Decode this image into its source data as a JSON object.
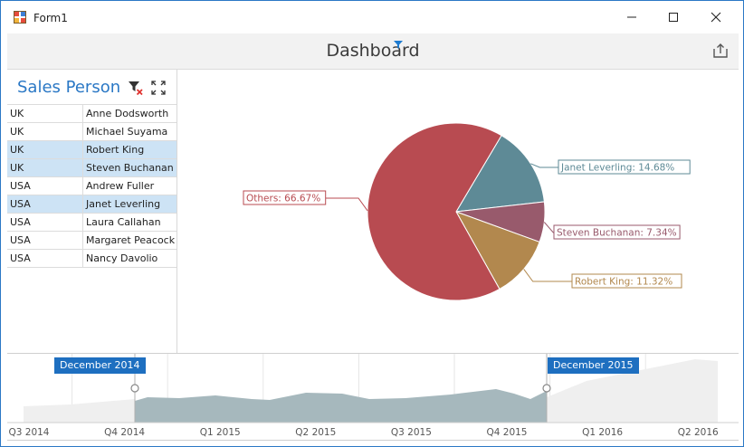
{
  "window": {
    "title": "Form1"
  },
  "dashboard": {
    "title": "Dashboard"
  },
  "sales_person": {
    "title": "Sales Person",
    "rows": [
      {
        "country": "UK",
        "name": "Anne Dodsworth",
        "selected": false
      },
      {
        "country": "UK",
        "name": "Michael Suyama",
        "selected": false
      },
      {
        "country": "UK",
        "name": "Robert King",
        "selected": true
      },
      {
        "country": "UK",
        "name": "Steven Buchanan",
        "selected": true
      },
      {
        "country": "USA",
        "name": "Andrew Fuller",
        "selected": false
      },
      {
        "country": "USA",
        "name": "Janet Leverling",
        "selected": true
      },
      {
        "country": "USA",
        "name": "Laura Callahan",
        "selected": false
      },
      {
        "country": "USA",
        "name": "Margaret Peacock",
        "selected": false
      },
      {
        "country": "USA",
        "name": "Nancy Davolio",
        "selected": false
      }
    ]
  },
  "chart_data": {
    "type": "pie",
    "slices": [
      {
        "label": "Janet Leverling: 14.68%",
        "value": 14.68,
        "color": "#5e8a96"
      },
      {
        "label": "Steven Buchanan: 7.34%",
        "value": 7.34,
        "color": "#985a6c"
      },
      {
        "label": "Robert King: 11.32%",
        "value": 11.32,
        "color": "#b2884e"
      },
      {
        "label": "Others: 66.67%",
        "value": 66.67,
        "color": "#b84b51"
      }
    ]
  },
  "range_filter": {
    "start_label": "December 2014",
    "end_label": "December 2015",
    "axis_labels": [
      "Q3 2014",
      "Q4 2014",
      "Q1 2015",
      "Q2 2015",
      "Q3 2015",
      "Q4 2015",
      "Q1 2016",
      "Q2 2016"
    ],
    "colors": {
      "selected_area": "#a6b8bd",
      "unselected_area": "#eeeeee",
      "badge": "#1e6fc0"
    }
  }
}
